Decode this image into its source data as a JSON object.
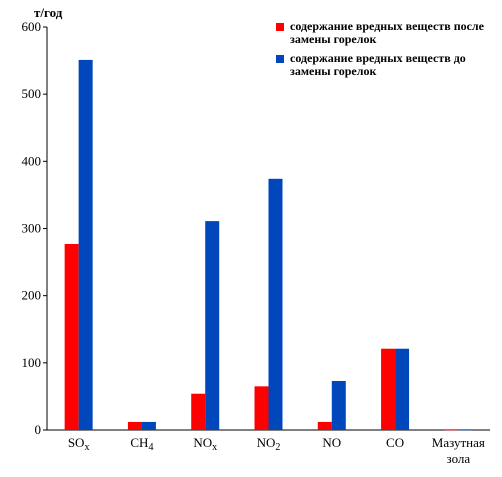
{
  "chart_data": {
    "type": "bar",
    "ylabel": "т/год",
    "categories": [
      {
        "main": "SO",
        "sub": "x"
      },
      {
        "main": "CH",
        "sub": "4"
      },
      {
        "main": "NO",
        "sub": "x"
      },
      {
        "main": "NO",
        "sub": "2"
      },
      {
        "main": "NO",
        "sub": ""
      },
      {
        "main": "CO",
        "sub": ""
      },
      {
        "main": "Мазутная",
        "line2": "зола",
        "sub": ""
      }
    ],
    "series": [
      {
        "name": "содержание вредных веществ после замены горелок",
        "color": "#ff0000",
        "values": [
          277,
          12,
          54,
          65,
          12,
          121,
          1
        ]
      },
      {
        "name": "содержание вредных веществ до замены горелок",
        "color": "#0047bb",
        "values": [
          551,
          12,
          311,
          374,
          73,
          121,
          1
        ]
      }
    ],
    "ylim": [
      0,
      600
    ],
    "yticks": [
      0,
      100,
      200,
      300,
      400,
      500,
      600
    ],
    "grid": false,
    "legend_position": "top-right"
  }
}
